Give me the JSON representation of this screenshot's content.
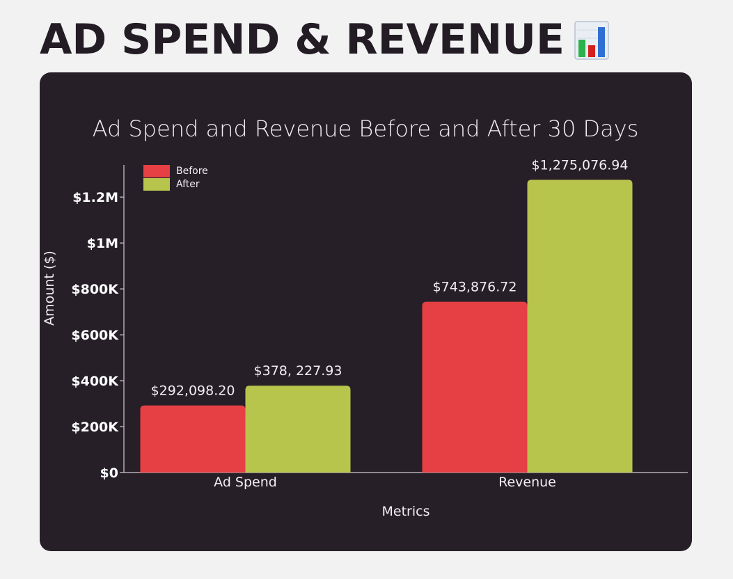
{
  "page": {
    "heading": "AD SPEND & REVENUE",
    "heading_icon": "bar-chart-emoji-icon"
  },
  "colors": {
    "before": "#e64045",
    "after": "#b8c54c",
    "card_bg": "#261f28",
    "page_bg": "#f2f2f2"
  },
  "chart_data": {
    "type": "bar",
    "title": "Ad Spend and Revenue Before and After 30 Days",
    "xlabel": "Metrics",
    "ylabel": "Amount ($)",
    "categories": [
      "Ad Spend",
      "Revenue"
    ],
    "series": [
      {
        "name": "Before",
        "values": [
          292098.2,
          743876.72
        ],
        "labels": [
          "$292,098.20",
          "$743,876.72"
        ]
      },
      {
        "name": "After",
        "values": [
          378227.93,
          1275076.94
        ],
        "labels": [
          "$378, 227.93",
          "$1,275,076.94"
        ]
      }
    ],
    "ylim": [
      0,
      1340000
    ],
    "yticks": [
      {
        "value": 0,
        "label": "$0"
      },
      {
        "value": 200000,
        "label": "$200K"
      },
      {
        "value": 400000,
        "label": "$400K"
      },
      {
        "value": 600000,
        "label": "$600K"
      },
      {
        "value": 800000,
        "label": "$800K"
      },
      {
        "value": 1000000,
        "label": "$1M"
      },
      {
        "value": 1200000,
        "label": "$1.2M"
      }
    ],
    "legend_position": "top-left",
    "grid": false
  }
}
